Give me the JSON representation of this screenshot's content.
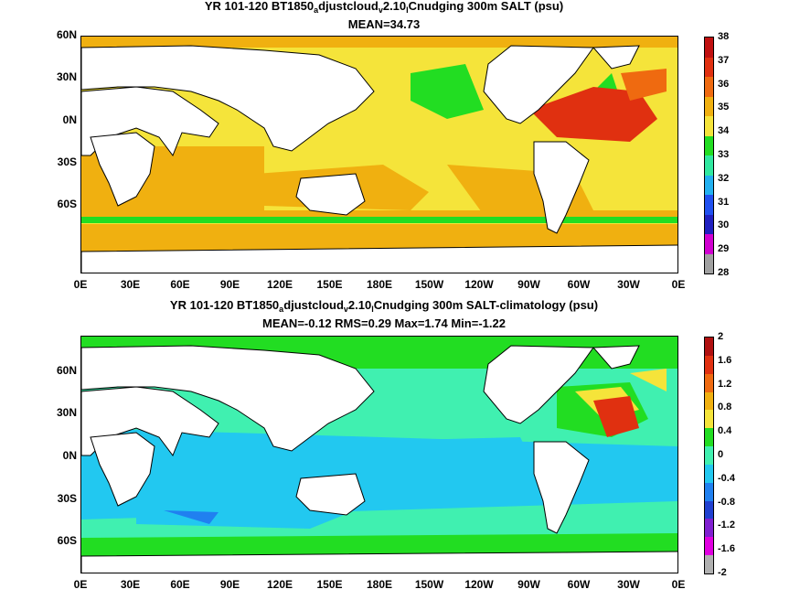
{
  "panel_top": {
    "title_parts": [
      "YR 101-120 BT1850",
      "a",
      "djustcloud",
      "v",
      "2.10",
      "l",
      "Cnudging 300m SALT (psu)"
    ],
    "stats": "MEAN=34.73",
    "colorbar_labels": [
      "38",
      "37",
      "36",
      "35",
      "34",
      "33",
      "32",
      "31",
      "30",
      "29",
      "28"
    ],
    "colorbar_colors": [
      "#c01010",
      "#e03010",
      "#ef6a10",
      "#f0b010",
      "#f5e43a",
      "#22dd22",
      "#30e8a0",
      "#22b0f0",
      "#2050f0",
      "#2020c0",
      "#d000d0",
      "#a0a0a0"
    ]
  },
  "panel_bottom": {
    "title_parts": [
      "YR 101-120 BT1850",
      "a",
      "djustcloud",
      "v",
      "2.10",
      "l",
      "Cnudging 300m SALT-climatology (psu)"
    ],
    "stats": "MEAN=-0.12   RMS=0.29   Max=1.74   Min=-1.22",
    "colorbar_labels": [
      "2",
      "1.6",
      "1.2",
      "0.8",
      "0.4",
      "0",
      "-0.4",
      "-0.8",
      "-1.2",
      "-1.6",
      "-2"
    ],
    "colorbar_colors": [
      "#b01010",
      "#e03010",
      "#ef6a10",
      "#f0b010",
      "#f5e43a",
      "#22dd22",
      "#40f0b0",
      "#22c8f0",
      "#2080f0",
      "#2040d0",
      "#8020d0",
      "#e000e0",
      "#b0b0b0"
    ]
  },
  "axes": {
    "lat_labels": [
      "60N",
      "30N",
      "0N",
      "30S",
      "60S"
    ],
    "lon_labels": [
      "0E",
      "30E",
      "60E",
      "90E",
      "120E",
      "150E",
      "180E",
      "150W",
      "120W",
      "90W",
      "60W",
      "30W",
      "0E"
    ]
  }
}
